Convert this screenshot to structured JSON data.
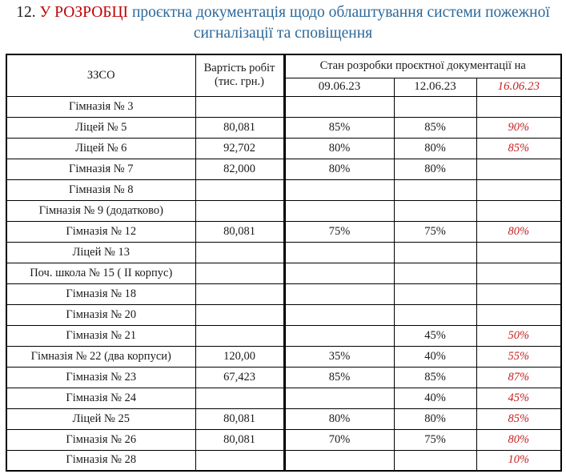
{
  "title": {
    "number": "12.",
    "status": "У РОЗРОБЦІ",
    "line1_rest": "проєктна документація щодо  облаштування  системи пожежної",
    "line2": "сигналізації та сповіщення"
  },
  "colors": {
    "title_blue": "#2D6899",
    "title_red": "#C00000",
    "value_red": "#C62323",
    "border": "#000000"
  },
  "table": {
    "header": {
      "school": "ЗЗСО",
      "cost_line1": "Вартість робіт",
      "cost_line2": "(тис. грн.)",
      "status_group": "Стан розробки проєктної документації на",
      "dates": [
        "09.06.23",
        "12.06.23",
        "16.06.23"
      ]
    },
    "rows": [
      {
        "name": "Гімназія № 3",
        "cost": "",
        "d1": "",
        "d2": "",
        "d3": ""
      },
      {
        "name": "Ліцей № 5",
        "cost": "80,081",
        "d1": "85%",
        "d2": "85%",
        "d3": "90%"
      },
      {
        "name": "Ліцей № 6",
        "cost": "92,702",
        "d1": "80%",
        "d2": "80%",
        "d3": "85%"
      },
      {
        "name": "Гімназія № 7",
        "cost": "82,000",
        "d1": "80%",
        "d2": "80%",
        "d3": ""
      },
      {
        "name": "Гімназія № 8",
        "cost": "",
        "d1": "",
        "d2": "",
        "d3": ""
      },
      {
        "name": "Гімназія № 9 (додатково)",
        "cost": "",
        "d1": "",
        "d2": "",
        "d3": ""
      },
      {
        "name": "Гімназія № 12",
        "cost": "80,081",
        "d1": "75%",
        "d2": "75%",
        "d3": "80%"
      },
      {
        "name": "Ліцей № 13",
        "cost": "",
        "d1": "",
        "d2": "",
        "d3": ""
      },
      {
        "name": "Поч. школа № 15 ( ІІ корпус)",
        "cost": "",
        "d1": "",
        "d2": "",
        "d3": ""
      },
      {
        "name": "Гімназія № 18",
        "cost": "",
        "d1": "",
        "d2": "",
        "d3": ""
      },
      {
        "name": "Гімназія № 20",
        "cost": "",
        "d1": "",
        "d2": "",
        "d3": ""
      },
      {
        "name": "Гімназія № 21",
        "cost": "",
        "d1": "",
        "d2": "45%",
        "d3": "50%"
      },
      {
        "name": "Гімназія № 22  (два корпуси)",
        "cost": "120,00",
        "d1": "35%",
        "d2": "40%",
        "d3": "55%"
      },
      {
        "name": "Гімназія № 23",
        "cost": "67,423",
        "d1": "85%",
        "d2": "85%",
        "d3": "87%"
      },
      {
        "name": "Гімназія № 24",
        "cost": "",
        "d1": "",
        "d2": "40%",
        "d3": "45%"
      },
      {
        "name": "Ліцей № 25",
        "cost": "80,081",
        "d1": "80%",
        "d2": "80%",
        "d3": "85%"
      },
      {
        "name": "Гімназія № 26",
        "cost": "80,081",
        "d1": "70%",
        "d2": "75%",
        "d3": "80%"
      },
      {
        "name": "Гімназія № 28",
        "cost": "",
        "d1": "",
        "d2": "",
        "d3": "10%"
      }
    ]
  }
}
